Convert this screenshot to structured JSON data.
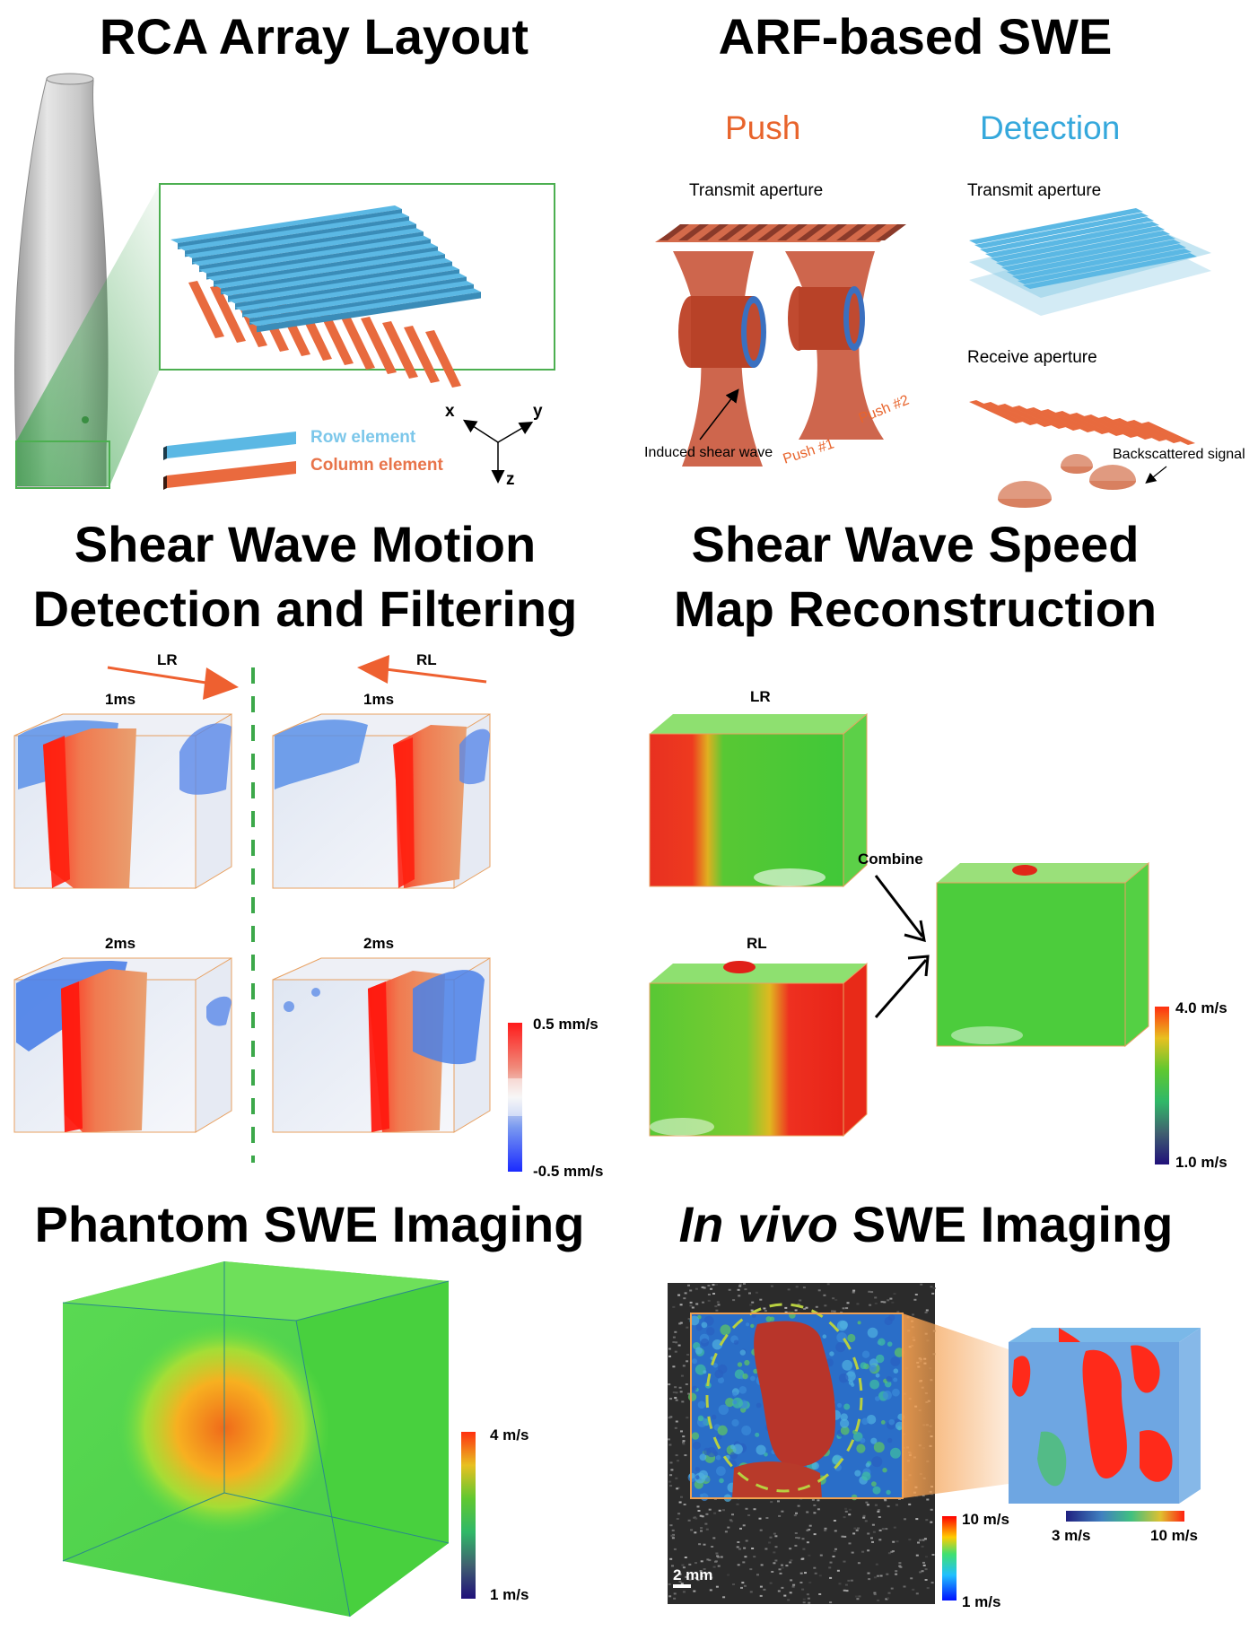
{
  "panels": {
    "rca": {
      "title": "RCA Array Layout",
      "legend_row": "Row element",
      "legend_column": "Column element",
      "axis_x": "x",
      "axis_y": "y",
      "axis_z": "z"
    },
    "arf": {
      "title": "ARF-based SWE",
      "push_heading": "Push",
      "detection_heading": "Detection",
      "push_transmit": "Transmit aperture",
      "detection_transmit": "Transmit aperture",
      "receive": "Receive aperture",
      "induced": "Induced shear wave",
      "push1": "Push #1",
      "push2": "Push #2",
      "backscatter": "Backscattered signal"
    },
    "motion": {
      "title_line1": "Shear Wave Motion",
      "title_line2": "Detection and Filtering",
      "lr": "LR",
      "rl": "RL",
      "t1_left": "1ms",
      "t1_right": "1ms",
      "t2_left": "2ms",
      "t2_right": "2ms",
      "cb_max": "0.5 mm/s",
      "cb_min": "-0.5 mm/s"
    },
    "speedmap": {
      "title_line1": "Shear Wave Speed",
      "title_line2": "Map Reconstruction",
      "lr": "LR",
      "rl": "RL",
      "combine": "Combine",
      "cb_max": "4.0 m/s",
      "cb_min": "1.0 m/s"
    },
    "phantom": {
      "title": "Phantom SWE Imaging",
      "cb_max": "4 m/s",
      "cb_min": "1 m/s"
    },
    "invivo": {
      "title_italic": "In vivo",
      "title_rest": " SWE Imaging",
      "cb_max": "10 m/s",
      "cb_min": "1 m/s",
      "cb3d_min": "3 m/s",
      "cb3d_max": "10 m/s",
      "scalebar": "2 mm"
    }
  },
  "colors": {
    "row_blue": "#5bb8e4",
    "column_orange": "#ea6a3e",
    "accent_orange": "#e8642c",
    "detection_blue": "#35a8dc",
    "frame_green": "#4caf50"
  }
}
